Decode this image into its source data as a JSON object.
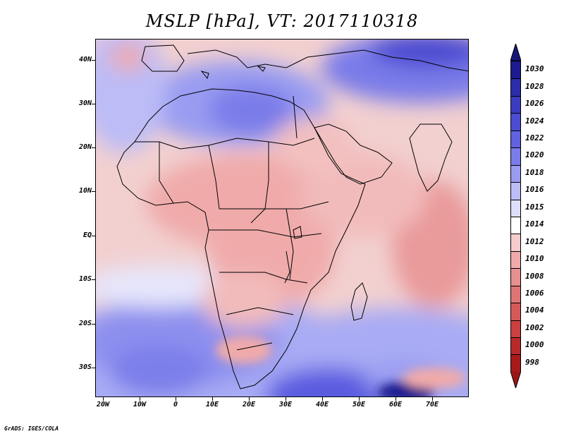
{
  "title": "MSLP [hPa], VT: 2017110318",
  "footer": "GrADS: IGES/COLA",
  "map": {
    "lat_labels": [
      "40N",
      "30N",
      "20N",
      "10N",
      "EQ",
      "10S",
      "20S",
      "30S"
    ],
    "lon_labels": [
      "20W",
      "10W",
      "0",
      "10E",
      "20E",
      "30E",
      "40E",
      "50E",
      "60E",
      "70E"
    ]
  },
  "colorbar": {
    "labels": [
      "1030",
      "1028",
      "1026",
      "1024",
      "1022",
      "1020",
      "1018",
      "1016",
      "1015",
      "1014",
      "1012",
      "1010",
      "1008",
      "1006",
      "1004",
      "1002",
      "1000",
      "998"
    ],
    "colors": [
      "#1c1b8f",
      "#2d2caa",
      "#3c3cc0",
      "#4c4cd2",
      "#6162e0",
      "#7a7ce9",
      "#9a9cf1",
      "#bcbcf7",
      "#dedefb",
      "#ffffff",
      "#f7cccc",
      "#f0aaaa",
      "#e79090",
      "#df7474",
      "#d65959",
      "#cb4040",
      "#b82a2a",
      "#a81a1a"
    ],
    "arrow_top_color": "#16167a",
    "arrow_bottom_color": "#9a1616"
  }
}
